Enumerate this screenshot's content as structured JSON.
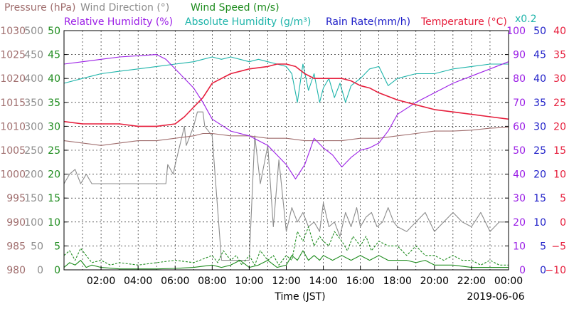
{
  "chart_data": {
    "type": "line",
    "date": "2019-06-06",
    "xlabel": "Time (JST)",
    "x_ticks": [
      "02:00",
      "04:00",
      "06:00",
      "08:00",
      "10:00",
      "12:00",
      "14:00",
      "16:00",
      "18:00",
      "20:00",
      "22:00",
      "00:00"
    ],
    "grid": true,
    "legend": [
      {
        "id": "pressure",
        "label": "Pressure (hPa)",
        "color": "#a06e6e"
      },
      {
        "id": "wind_dir",
        "label": "Wind Direction (°)",
        "color": "#8c8c8c"
      },
      {
        "id": "wind_speed",
        "label": "Wind Speed (m/s)",
        "color": "#1e8c1e"
      },
      {
        "id": "rh",
        "label": "Relative Humidity (%)",
        "color": "#9b1ee6"
      },
      {
        "id": "ah",
        "label": "Absolute Humidity (g/m³)",
        "color": "#1eb4aa"
      },
      {
        "id": "rain",
        "label": "Rain Rate(mm/h)",
        "color": "#1e1ec8"
      },
      {
        "id": "temp",
        "label": "Temperature (°C)",
        "color": "#e61e3c"
      }
    ],
    "ah_factor_label": "x0.2",
    "axes": {
      "pressure": {
        "color": "#a06e6e",
        "min": 980,
        "max": 1030,
        "ticks": [
          "980",
          "985",
          "990",
          "995",
          "1000",
          "1005",
          "1010",
          "1015",
          "1020",
          "1025",
          "1030"
        ]
      },
      "wind_dir": {
        "color": "#8c8c8c",
        "min": 0,
        "max": 500,
        "ticks": [
          "0",
          "50",
          "100",
          "150",
          "200",
          "250",
          "300",
          "350",
          "400",
          "450",
          "500"
        ]
      },
      "wind_speed": {
        "color": "#1e8c1e",
        "min": 0,
        "max": 50,
        "ticks": [
          "0",
          "5",
          "10",
          "15",
          "20",
          "25",
          "30",
          "35",
          "40",
          "45",
          "50"
        ]
      },
      "rh": {
        "color": "#9b1ee6",
        "min": 0,
        "max": 100,
        "ticks": [
          "0",
          "10",
          "20",
          "30",
          "40",
          "50",
          "60",
          "70",
          "80",
          "90",
          "100"
        ]
      },
      "rain": {
        "color": "#1e1ec8",
        "min": 0,
        "max": 50,
        "ticks": [
          "0",
          "5",
          "10",
          "15",
          "20",
          "25",
          "30",
          "35",
          "40",
          "45",
          "50"
        ]
      },
      "temp": {
        "color": "#e61e3c",
        "min": -10,
        "max": 40,
        "ticks": [
          "−10",
          "−5",
          "0",
          "5",
          "10",
          "15",
          "20",
          "25",
          "30",
          "35",
          "40"
        ]
      }
    },
    "series": [
      {
        "id": "pressure",
        "name": "Pressure (hPa)",
        "axis": "pressure",
        "color": "#a06e6e",
        "x": [
          0,
          1,
          2,
          3,
          4,
          5,
          6,
          7,
          7.5,
          8,
          9,
          10,
          11,
          12,
          13,
          14,
          15,
          16,
          17,
          18,
          19,
          20,
          21,
          22,
          23,
          24
        ],
        "y": [
          1007,
          1006.5,
          1006,
          1006.5,
          1007,
          1007,
          1007.5,
          1008,
          1008.5,
          1008.5,
          1008,
          1008,
          1007.5,
          1007.5,
          1007,
          1007,
          1007,
          1007.5,
          1007.5,
          1008,
          1008.5,
          1009,
          1009,
          1009.2,
          1009.6,
          1009.8
        ]
      },
      {
        "id": "rh",
        "name": "Relative Humidity (%)",
        "axis": "rh",
        "color": "#9b1ee6",
        "x": [
          0,
          1,
          2,
          3,
          4,
          5,
          5.5,
          6,
          7,
          7.5,
          8,
          9,
          10,
          11,
          11.5,
          12,
          12.5,
          13,
          13.5,
          14,
          14.5,
          15,
          15.5,
          16,
          16.5,
          17,
          17.5,
          18,
          19,
          20,
          21,
          22,
          23,
          24
        ],
        "y": [
          86,
          87,
          88,
          89,
          89.5,
          90,
          88,
          84,
          76,
          70,
          63,
          58,
          56,
          52,
          48,
          44,
          38,
          44,
          55,
          51,
          48,
          43,
          47,
          50,
          51,
          53,
          58,
          65,
          70,
          74,
          78,
          81,
          84,
          87
        ]
      },
      {
        "id": "ah",
        "name": "Absolute Humidity (g/m³)",
        "axis": "rh",
        "color": "#1eb4aa",
        "x": [
          0,
          1,
          2,
          3,
          4,
          5,
          6,
          7,
          7.5,
          8,
          8.5,
          9,
          9.5,
          10,
          10.5,
          11,
          11.5,
          12,
          12.3,
          12.6,
          12.9,
          13.2,
          13.5,
          13.8,
          14,
          14.3,
          14.6,
          14.9,
          15.2,
          15.5,
          16,
          16.5,
          17,
          17.5,
          18,
          19,
          20,
          21,
          22,
          23,
          24
        ],
        "y": [
          78,
          80,
          82,
          83,
          84,
          85,
          86,
          87,
          88,
          89,
          88,
          89,
          88,
          87,
          88,
          87,
          86,
          85,
          82,
          70,
          86,
          75,
          82,
          70,
          76,
          80,
          72,
          78,
          70,
          77,
          80,
          84,
          85,
          77,
          80,
          82,
          82,
          84,
          85,
          86,
          86
        ]
      },
      {
        "id": "temp",
        "name": "Temperature (°C)",
        "axis": "temp",
        "color": "#e61e3c",
        "x": [
          0,
          1,
          2,
          3,
          4,
          5,
          6,
          6.5,
          7,
          7.5,
          8,
          9,
          10,
          11,
          11.5,
          12,
          12.5,
          13,
          13.5,
          14,
          14.5,
          15,
          15.5,
          16,
          16.5,
          17,
          18,
          19,
          20,
          21,
          22,
          23,
          24
        ],
        "y": [
          21,
          20.5,
          20.5,
          20.5,
          20,
          20,
          20.5,
          22,
          24,
          26,
          29,
          31,
          32,
          32.5,
          33,
          33,
          32.5,
          31,
          30,
          30,
          30,
          30,
          29.5,
          28.5,
          28,
          27,
          25.5,
          24.5,
          23.5,
          23,
          22.5,
          22,
          21.5
        ]
      },
      {
        "id": "wind_dir",
        "name": "Wind Direction (°)",
        "axis": "wind_dir",
        "color": "#8c8c8c",
        "x": [
          0,
          0.3,
          0.6,
          0.9,
          1.2,
          1.5,
          2,
          3,
          4,
          5,
          5.5,
          5.6,
          5.9,
          6,
          6.5,
          6.6,
          7.0,
          7.2,
          7.5,
          7.6,
          8,
          8.5,
          9,
          9.5,
          10,
          10.3,
          10.6,
          11,
          11.3,
          11.6,
          12,
          12.3,
          12.6,
          12.9,
          13.2,
          13.5,
          13.8,
          14,
          14.3,
          14.6,
          14.9,
          15.2,
          15.5,
          15.8,
          16,
          16.3,
          16.6,
          16.9,
          17.2,
          17.5,
          17.8,
          18,
          18.5,
          19,
          19.5,
          20,
          20.5,
          21,
          21.5,
          22,
          22.5,
          23,
          23.5,
          24
        ],
        "y": [
          180,
          200,
          210,
          180,
          200,
          180,
          180,
          180,
          180,
          180,
          180,
          220,
          200,
          220,
          300,
          260,
          300,
          330,
          330,
          300,
          280,
          20,
          20,
          20,
          20,
          280,
          180,
          260,
          90,
          230,
          80,
          130,
          100,
          120,
          90,
          100,
          80,
          140,
          90,
          100,
          70,
          120,
          90,
          130,
          90,
          110,
          120,
          90,
          100,
          130,
          100,
          90,
          80,
          100,
          120,
          80,
          100,
          120,
          100,
          90,
          120,
          80,
          100,
          100
        ]
      },
      {
        "id": "wind_speed",
        "name": "Wind Speed (m/s)",
        "axis": "wind_speed",
        "color": "#1e8c1e",
        "x": [
          0,
          0.3,
          0.6,
          0.9,
          1.2,
          1.5,
          2,
          3,
          4,
          5,
          6,
          7,
          8,
          8.5,
          9,
          9.5,
          10,
          10.5,
          11,
          11.5,
          12,
          12.3,
          12.6,
          12.9,
          13.2,
          13.5,
          13.8,
          14,
          14.5,
          15,
          15.5,
          16,
          16.5,
          17,
          17.5,
          18,
          18.5,
          19,
          19.5,
          20,
          21,
          22,
          23,
          24
        ],
        "y": [
          0.5,
          1.5,
          1,
          2,
          0.5,
          1,
          0.5,
          0.2,
          0.2,
          0.2,
          0.3,
          0.5,
          1,
          0.5,
          1,
          2,
          0.5,
          1,
          2,
          0.5,
          1,
          3,
          2,
          4,
          2,
          3,
          2,
          3,
          2,
          3,
          2,
          3,
          2,
          3,
          2,
          2,
          2,
          1.5,
          2,
          1,
          1,
          0.5,
          0.5,
          0.5
        ]
      },
      {
        "id": "wind_gust",
        "name": "Wind Speed (m/s) gust",
        "axis": "wind_speed",
        "color": "#1e8c1e",
        "dashed": true,
        "x": [
          0,
          0.3,
          0.6,
          0.9,
          1.2,
          1.5,
          2,
          2.5,
          3,
          4,
          5,
          6,
          7,
          8,
          8.3,
          8.6,
          9,
          9.3,
          9.6,
          10,
          10.3,
          10.6,
          11,
          11.3,
          11.6,
          12,
          12.3,
          12.6,
          12.9,
          13.2,
          13.5,
          13.8,
          14,
          14.3,
          14.6,
          15,
          15.3,
          15.6,
          16,
          16.3,
          16.6,
          17,
          17.5,
          18,
          18.5,
          19,
          19.5,
          20,
          20.5,
          21,
          21.5,
          22,
          22.5,
          23,
          23.5,
          24
        ],
        "y": [
          3,
          4,
          2,
          4.5,
          3,
          1.5,
          2,
          1,
          1.5,
          1,
          1.5,
          2,
          1.5,
          3,
          1.5,
          4,
          2,
          3,
          1,
          3,
          1,
          4,
          2,
          3,
          1,
          3,
          2,
          8,
          6,
          9,
          5,
          7,
          6,
          5,
          8,
          6,
          4,
          7,
          5,
          7,
          4,
          6,
          5,
          5,
          3,
          5,
          3,
          3,
          2,
          3,
          2,
          2,
          1,
          2,
          1,
          1
        ]
      },
      {
        "id": "rain",
        "name": "Rain Rate(mm/h)",
        "axis": "rain",
        "color": "#1e1ec8",
        "x": [
          0,
          24
        ],
        "y": [
          0,
          0
        ]
      }
    ]
  }
}
